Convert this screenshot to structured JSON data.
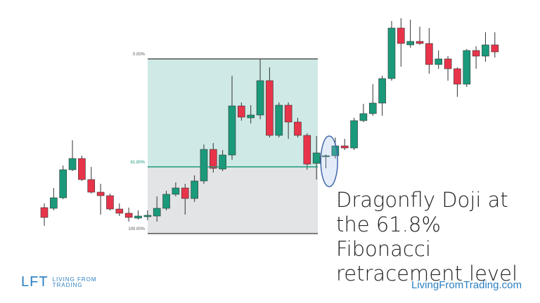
{
  "chart_data": {
    "type": "candlestick",
    "open": [
      136,
      135,
      150,
      190,
      206,
      176,
      158,
      153,
      134,
      128,
      121,
      123,
      124,
      135,
      155,
      164,
      149,
      174,
      219,
      191,
      211,
      281,
      264,
      268,
      317,
      239,
      282,
      258,
      239,
      199,
      209,
      210,
      224,
      221,
      260,
      270,
      285,
      320,
      392,
      368,
      373,
      370,
      340,
      348,
      334,
      312,
      360,
      352,
      368
    ],
    "high": [
      142,
      164,
      196,
      232,
      210,
      194,
      170,
      156,
      142,
      136,
      132,
      132,
      152,
      160,
      172,
      170,
      182,
      226,
      228,
      218,
      324,
      286,
      282,
      348,
      336,
      286,
      286,
      264,
      242,
      238,
      212,
      236,
      234,
      264,
      284,
      312,
      324,
      402,
      406,
      404,
      394,
      392,
      360,
      352,
      336,
      362,
      366,
      386,
      386
    ],
    "low": [
      110,
      132,
      148,
      188,
      174,
      156,
      126,
      132,
      124,
      116,
      119,
      118,
      116,
      132,
      152,
      126,
      144,
      170,
      186,
      188,
      204,
      260,
      256,
      262,
      236,
      236,
      234,
      236,
      190,
      176,
      192,
      206,
      218,
      218,
      258,
      267,
      267,
      317,
      337,
      364,
      368,
      327,
      334,
      317,
      294,
      308,
      334,
      344,
      350
    ],
    "close": [
      122,
      150,
      190,
      206,
      176,
      158,
      153,
      134,
      128,
      122,
      124,
      125,
      135,
      155,
      164,
      149,
      174,
      219,
      192,
      211,
      281,
      265,
      268,
      317,
      239,
      282,
      258,
      239,
      198,
      214,
      210,
      224,
      221,
      260,
      270,
      285,
      320,
      392,
      370,
      373,
      370,
      340,
      348,
      334,
      312,
      360,
      352,
      368,
      358
    ],
    "up_color": "#1a9a7a",
    "down_color": "#e8344a",
    "ylim": [
      0,
      432
    ],
    "fib_range": [
      348,
      99
    ],
    "fib_levels": [
      {
        "value": 0,
        "label": "0.00%"
      },
      {
        "value": 61.8,
        "label": "61.80%"
      },
      {
        "value": 100,
        "label": "100.00%"
      }
    ],
    "annotation": "Dragonfly Doji at the 61.8% Fibonacci retracement level"
  },
  "branding": {
    "logo": "LFT",
    "logo_line1": "LIVING FROM",
    "logo_line2": "TRADING",
    "website": "LivingFromTrading.com"
  }
}
